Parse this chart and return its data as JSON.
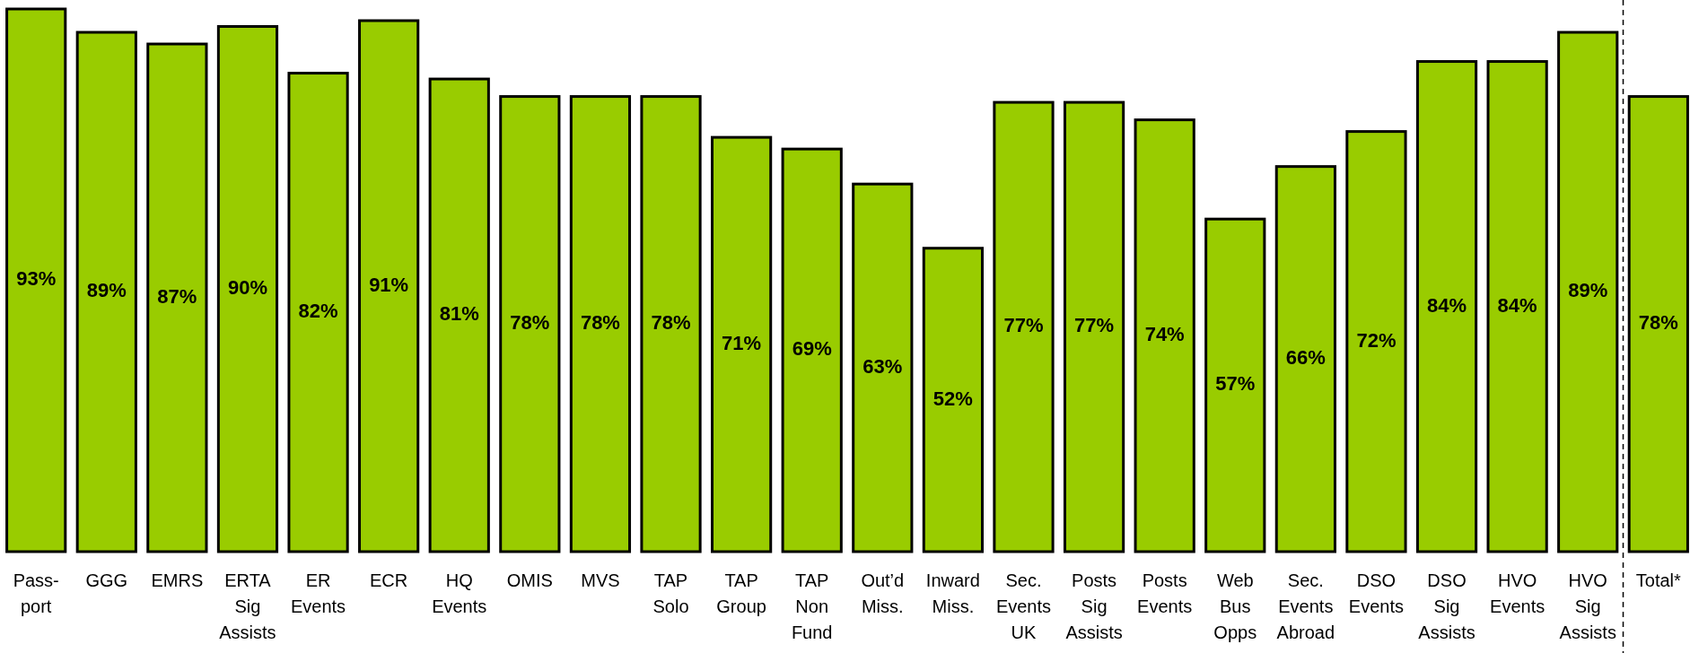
{
  "chart_data": {
    "type": "bar",
    "categories": [
      "Pass- port",
      "GGG",
      "EMRS",
      "ERTA Sig Assists",
      "ER Events",
      "ECR",
      "HQ Events",
      "OMIS",
      "MVS",
      "TAP Solo",
      "TAP Group",
      "TAP Non Fund",
      "Out’d Miss.",
      "Inward Miss.",
      "Sec. Events UK",
      "Posts Sig Assists",
      "Posts Events",
      "Web Bus Opps",
      "Sec. Events Abroad",
      "DSO Events",
      "DSO Sig Assists",
      "HVO Events",
      "HVO Sig Assists",
      "Total*"
    ],
    "values": [
      93,
      89,
      87,
      90,
      82,
      91,
      81,
      78,
      78,
      78,
      71,
      69,
      63,
      52,
      77,
      77,
      74,
      57,
      66,
      72,
      84,
      84,
      89,
      78
    ],
    "value_labels": [
      "93%",
      "89%",
      "87%",
      "90%",
      "82%",
      "91%",
      "81%",
      "78%",
      "78%",
      "78%",
      "71%",
      "69%",
      "63%",
      "52%",
      "77%",
      "77%",
      "74%",
      "57%",
      "66%",
      "72%",
      "84%",
      "84%",
      "89%",
      "78%"
    ],
    "color": "#99cc00"
  }
}
